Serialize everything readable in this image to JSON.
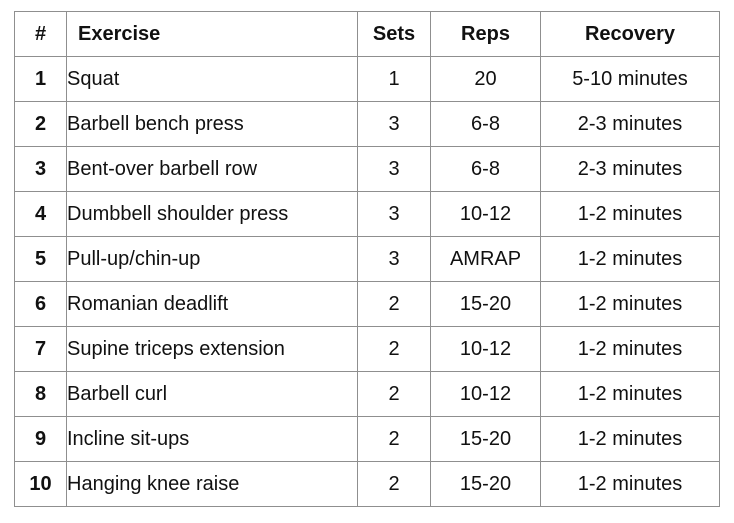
{
  "table": {
    "headers": {
      "num": "#",
      "exercise": "Exercise",
      "sets": "Sets",
      "reps": "Reps",
      "recovery": "Recovery"
    },
    "rows": [
      {
        "num": "1",
        "exercise": "Squat",
        "sets": "1",
        "reps": "20",
        "recovery": "5-10 minutes"
      },
      {
        "num": "2",
        "exercise": "Barbell bench press",
        "sets": "3",
        "reps": "6-8",
        "recovery": "2-3 minutes"
      },
      {
        "num": "3",
        "exercise": "Bent-over barbell row",
        "sets": "3",
        "reps": "6-8",
        "recovery": "2-3 minutes"
      },
      {
        "num": "4",
        "exercise": "Dumbbell shoulder press",
        "sets": "3",
        "reps": "10-12",
        "recovery": "1-2 minutes"
      },
      {
        "num": "5",
        "exercise": "Pull-up/chin-up",
        "sets": "3",
        "reps": "AMRAP",
        "recovery": "1-2 minutes"
      },
      {
        "num": "6",
        "exercise": "Romanian deadlift",
        "sets": "2",
        "reps": "15-20",
        "recovery": "1-2 minutes"
      },
      {
        "num": "7",
        "exercise": "Supine triceps extension",
        "sets": "2",
        "reps": "10-12",
        "recovery": "1-2 minutes"
      },
      {
        "num": "8",
        "exercise": "Barbell curl",
        "sets": "2",
        "reps": "10-12",
        "recovery": "1-2 minutes"
      },
      {
        "num": "9",
        "exercise": "Incline sit-ups",
        "sets": "2",
        "reps": "15-20",
        "recovery": "1-2 minutes"
      },
      {
        "num": "10",
        "exercise": "Hanging knee raise",
        "sets": "2",
        "reps": "15-20",
        "recovery": "1-2 minutes"
      }
    ]
  }
}
